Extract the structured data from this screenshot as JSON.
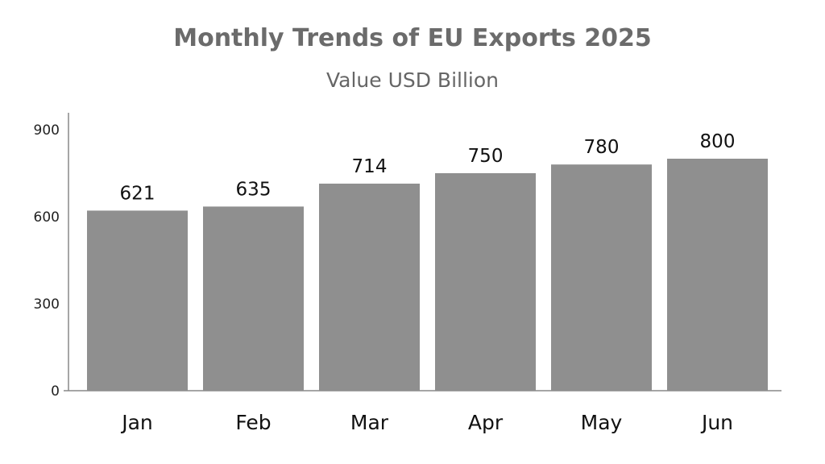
{
  "chart_data": {
    "type": "bar",
    "title": "Monthly Trends of EU Exports 2025",
    "subtitle": "Value USD Billion",
    "categories": [
      "Jan",
      "Feb",
      "Mar",
      "Apr",
      "May",
      "Jun"
    ],
    "values": [
      621,
      635,
      714,
      750,
      780,
      800
    ],
    "yticks": [
      0,
      300,
      600,
      900
    ],
    "ylim": [
      0,
      900
    ],
    "xlabel": "",
    "ylabel": "",
    "grid": false,
    "legend": "none",
    "bar_color": "#8f8f8f",
    "axis_color": "#888888"
  }
}
